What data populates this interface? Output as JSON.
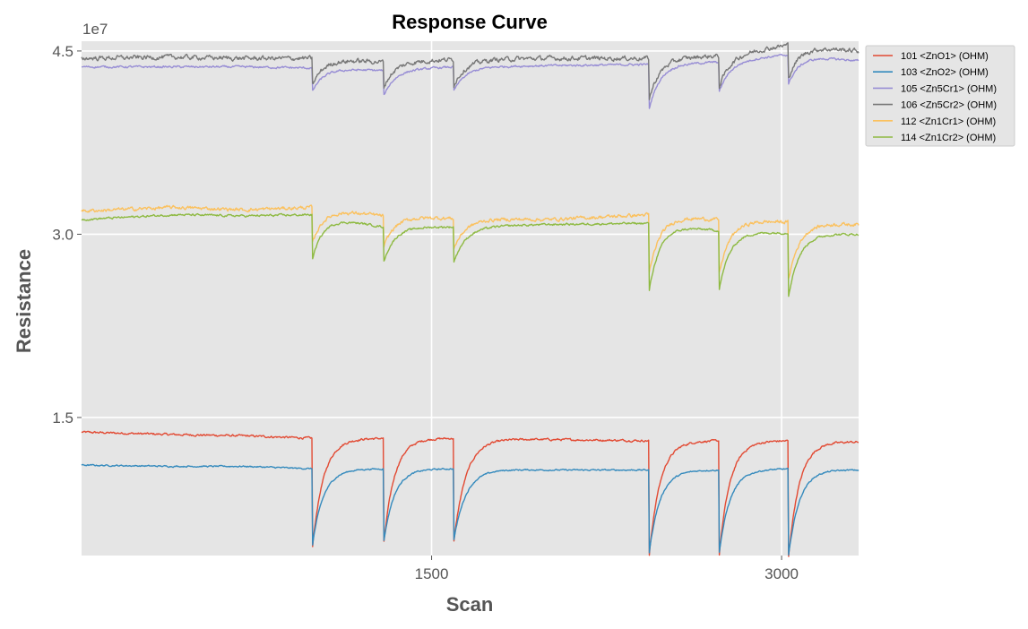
{
  "chart_data": {
    "type": "line",
    "title": "Response Curve",
    "xlabel": "Scan",
    "ylabel": "Resistance",
    "y_scale_label": "1e7",
    "xlim": [
      0,
      3330
    ],
    "ylim": [
      0.37,
      4.58
    ],
    "x_ticks": [
      1500,
      3000
    ],
    "x_tick_labels": [
      "1500",
      "3000"
    ],
    "y_ticks": [
      1.5,
      3.0,
      4.5
    ],
    "y_tick_labels": [
      "1.5",
      "3.0",
      "4.5"
    ],
    "grid": true,
    "background": "#e5e5e5",
    "legend_position": "outside-top-right",
    "exposures": [
      {
        "start": 990,
        "recovery": 1140,
        "end": 1295
      },
      {
        "start": 1295,
        "recovery": 1440,
        "end": 1595
      },
      {
        "start": 1595,
        "recovery": 1760,
        "end": 2432
      },
      {
        "start": 2432,
        "recovery": 2580,
        "end": 2732
      },
      {
        "start": 2732,
        "recovery": 2880,
        "end": 3030
      },
      {
        "start": 3030,
        "recovery": 3180,
        "end": 3330
      }
    ],
    "series": [
      {
        "name": "101 <ZnO1> (OHM)",
        "color": "#E24A33",
        "noise": 0.006,
        "baseline": [
          [
            0,
            1.38
          ],
          [
            400,
            1.36
          ],
          [
            700,
            1.35
          ],
          [
            990,
            1.33
          ],
          [
            1295,
            1.33
          ],
          [
            1595,
            1.33
          ],
          [
            2000,
            1.32
          ],
          [
            2432,
            1.31
          ],
          [
            2732,
            1.31
          ],
          [
            3030,
            1.31
          ],
          [
            3330,
            1.3
          ]
        ],
        "troughs": [
          0.44,
          0.46,
          0.47,
          0.35,
          0.36,
          0.36
        ]
      },
      {
        "name": "103 <ZnO2> (OHM)",
        "color": "#348ABD",
        "noise": 0.004,
        "baseline": [
          [
            0,
            1.11
          ],
          [
            400,
            1.1
          ],
          [
            700,
            1.1
          ],
          [
            990,
            1.08
          ],
          [
            1295,
            1.08
          ],
          [
            1595,
            1.08
          ],
          [
            2000,
            1.07
          ],
          [
            2432,
            1.07
          ],
          [
            2732,
            1.07
          ],
          [
            3030,
            1.08
          ],
          [
            3330,
            1.07
          ]
        ],
        "troughs": [
          0.46,
          0.48,
          0.49,
          0.38,
          0.38,
          0.37
        ]
      },
      {
        "name": "105 <Zn5Cr1> (OHM)",
        "color": "#988ED5",
        "noise": 0.006,
        "baseline": [
          [
            0,
            4.37
          ],
          [
            400,
            4.37
          ],
          [
            700,
            4.37
          ],
          [
            990,
            4.36
          ],
          [
            1295,
            4.34
          ],
          [
            1595,
            4.37
          ],
          [
            2000,
            4.38
          ],
          [
            2432,
            4.39
          ],
          [
            2732,
            4.41
          ],
          [
            3030,
            4.47
          ],
          [
            3330,
            4.42
          ]
        ],
        "troughs": [
          4.17,
          4.13,
          4.17,
          4.02,
          4.16,
          4.23
        ]
      },
      {
        "name": "106 <Zn5Cr2> (OHM)",
        "color": "#777777",
        "noise": 0.013,
        "baseline": [
          [
            0,
            4.44
          ],
          [
            400,
            4.45
          ],
          [
            700,
            4.44
          ],
          [
            990,
            4.44
          ],
          [
            1295,
            4.41
          ],
          [
            1595,
            4.43
          ],
          [
            2000,
            4.44
          ],
          [
            2432,
            4.44
          ],
          [
            2732,
            4.46
          ],
          [
            3030,
            4.55
          ],
          [
            3330,
            4.5
          ]
        ],
        "troughs": [
          4.22,
          4.2,
          4.22,
          4.1,
          4.2,
          4.28
        ]
      },
      {
        "name": "112 <Zn1Cr1> (OHM)",
        "color": "#FBC15E",
        "noise": 0.01,
        "baseline": [
          [
            0,
            3.19
          ],
          [
            400,
            3.22
          ],
          [
            700,
            3.2
          ],
          [
            990,
            3.22
          ],
          [
            1295,
            3.15
          ],
          [
            1595,
            3.13
          ],
          [
            2000,
            3.12
          ],
          [
            2432,
            3.16
          ],
          [
            2732,
            3.12
          ],
          [
            3030,
            3.1
          ],
          [
            3330,
            3.08
          ]
        ],
        "troughs": [
          2.93,
          2.89,
          2.88,
          2.67,
          2.67,
          2.63
        ]
      },
      {
        "name": "114 <Zn1Cr2> (OHM)",
        "color": "#8EBA42",
        "noise": 0.006,
        "baseline": [
          [
            0,
            3.12
          ],
          [
            400,
            3.16
          ],
          [
            700,
            3.15
          ],
          [
            990,
            3.16
          ],
          [
            1295,
            3.06
          ],
          [
            1595,
            3.06
          ],
          [
            2000,
            3.08
          ],
          [
            2432,
            3.09
          ],
          [
            2732,
            3.03
          ],
          [
            3030,
            3.01
          ],
          [
            3330,
            3.0
          ]
        ],
        "troughs": [
          2.8,
          2.77,
          2.77,
          2.53,
          2.54,
          2.5
        ]
      }
    ]
  }
}
